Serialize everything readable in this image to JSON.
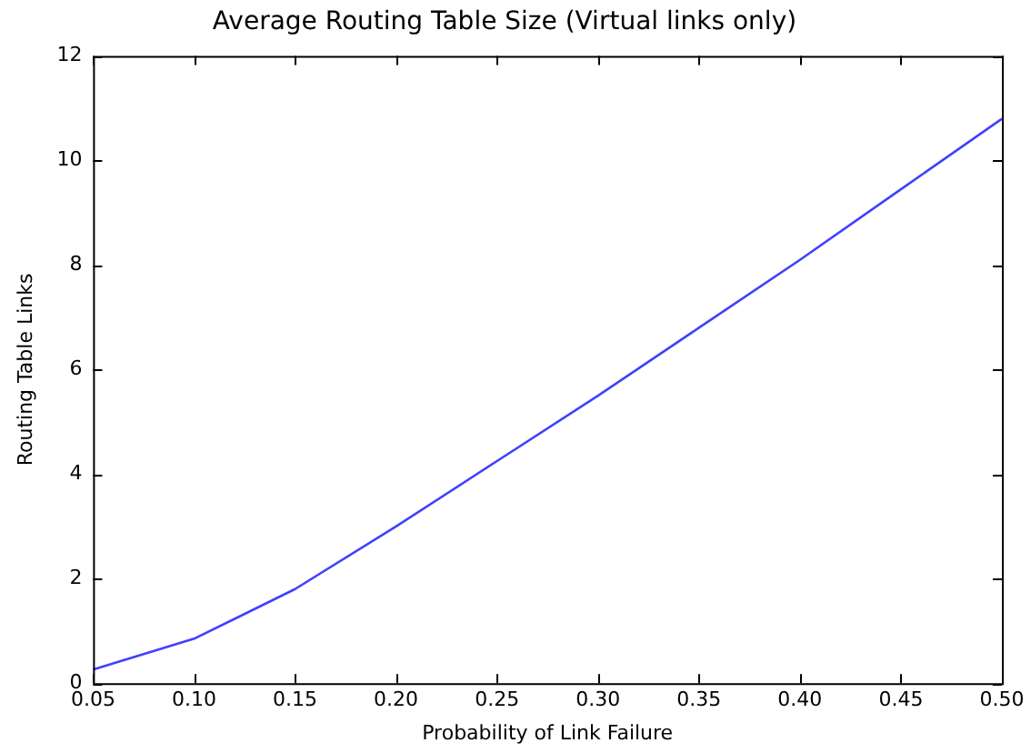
{
  "chart_data": {
    "type": "line",
    "title": "Average Routing Table Size (Virtual links only)",
    "xlabel": "Probability of Link Failure",
    "ylabel": "Routing Table Links",
    "x": [
      0.05,
      0.1,
      0.15,
      0.2,
      0.25,
      0.3,
      0.35,
      0.4,
      0.45,
      0.5
    ],
    "series": [
      {
        "color": "#4040ff",
        "values": [
          0.26,
          0.85,
          1.8,
          3.0,
          4.25,
          5.5,
          6.8,
          8.1,
          9.45,
          10.8
        ]
      }
    ],
    "xlim": [
      0.05,
      0.5
    ],
    "ylim": [
      0,
      12
    ],
    "xticks": [
      0.05,
      {
        "value": 0.1,
        "label": "0.10"
      },
      0.15,
      {
        "value": 0.2,
        "label": "0.20"
      },
      0.25,
      {
        "value": 0.3,
        "label": "0.30"
      },
      0.35,
      {
        "value": 0.4,
        "label": "0.40"
      },
      0.45,
      {
        "value": 0.5,
        "label": "0.50"
      }
    ],
    "yticks": [
      0,
      2,
      4,
      6,
      8,
      10,
      12
    ],
    "grid": false,
    "legend": false,
    "marker": "none",
    "line_style": "solid"
  }
}
